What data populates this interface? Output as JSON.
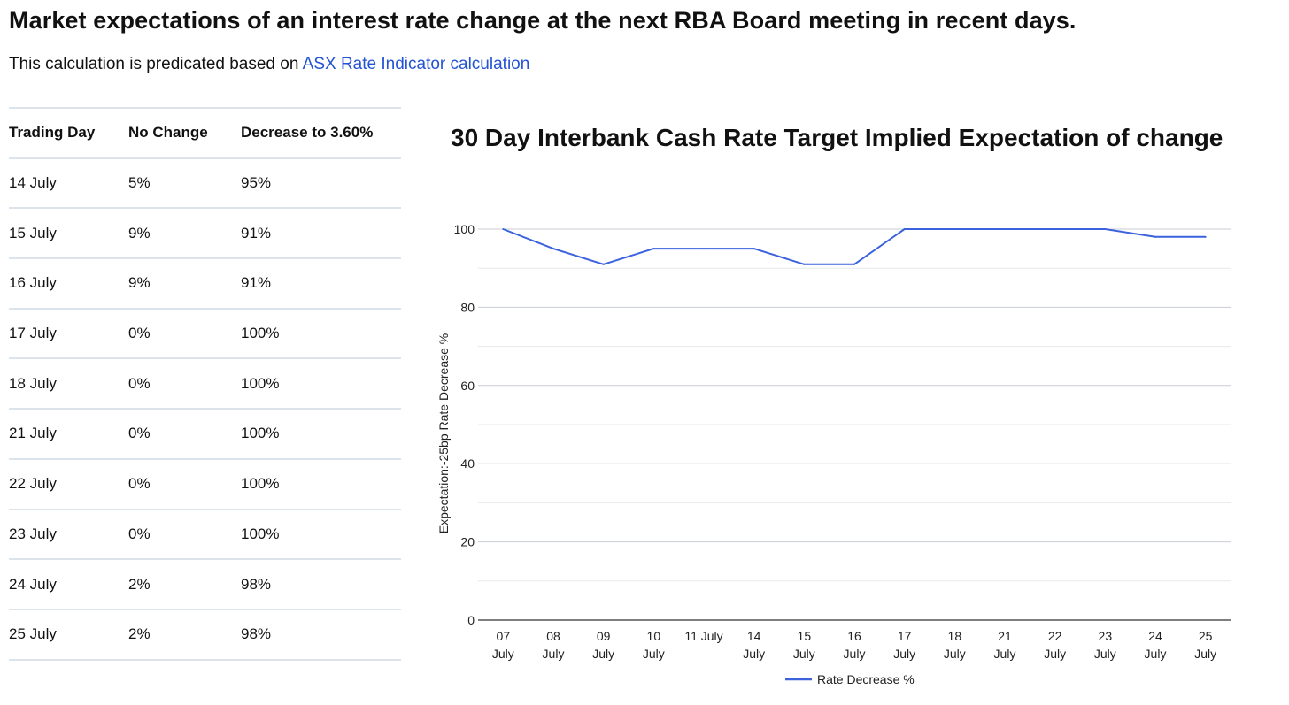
{
  "header": {
    "title": "Market expectations of an interest rate change at the next RBA Board meeting in recent days.",
    "subtitle_text": "This calculation is predicated based on ",
    "subtitle_link": "ASX Rate Indicator calculation"
  },
  "table": {
    "columns": [
      "Trading Day",
      "No Change",
      "Decrease to 3.60%"
    ],
    "rows": [
      [
        "14 July",
        "5%",
        "95%"
      ],
      [
        "15 July",
        "9%",
        "91%"
      ],
      [
        "16 July",
        "9%",
        "91%"
      ],
      [
        "17 July",
        "0%",
        "100%"
      ],
      [
        "18 July",
        "0%",
        "100%"
      ],
      [
        "21 July",
        "0%",
        "100%"
      ],
      [
        "22 July",
        "0%",
        "100%"
      ],
      [
        "23 July",
        "0%",
        "100%"
      ],
      [
        "24 July",
        "2%",
        "98%"
      ],
      [
        "25 July",
        "2%",
        "98%"
      ]
    ]
  },
  "chart_data": {
    "type": "line",
    "title": "30 Day Interbank Cash Rate Target Implied Expectation of change",
    "xlabel": "",
    "ylabel": "Expectation:-25bp Rate Decrease %",
    "ylim": [
      0,
      100
    ],
    "yticks": [
      0,
      20,
      40,
      60,
      80,
      100
    ],
    "categories": [
      [
        "07",
        "July"
      ],
      [
        "08",
        "July"
      ],
      [
        "09",
        "July"
      ],
      [
        "10",
        "July"
      ],
      [
        "11 July"
      ],
      [
        "14",
        "July"
      ],
      [
        "15",
        "July"
      ],
      [
        "16",
        "July"
      ],
      [
        "17",
        "July"
      ],
      [
        "18",
        "July"
      ],
      [
        "21",
        "July"
      ],
      [
        "22",
        "July"
      ],
      [
        "23",
        "July"
      ],
      [
        "24",
        "July"
      ],
      [
        "25",
        "July"
      ]
    ],
    "series": [
      {
        "name": "Rate Decrease %",
        "values": [
          100,
          95,
          91,
          95,
          95,
          95,
          91,
          91,
          100,
          100,
          100,
          100,
          100,
          98,
          98
        ]
      }
    ],
    "legend": "bottom",
    "line_color": "#3c62dd",
    "grid_color": "#c9ced4",
    "minor_grid_color": "#e6e9ec"
  }
}
